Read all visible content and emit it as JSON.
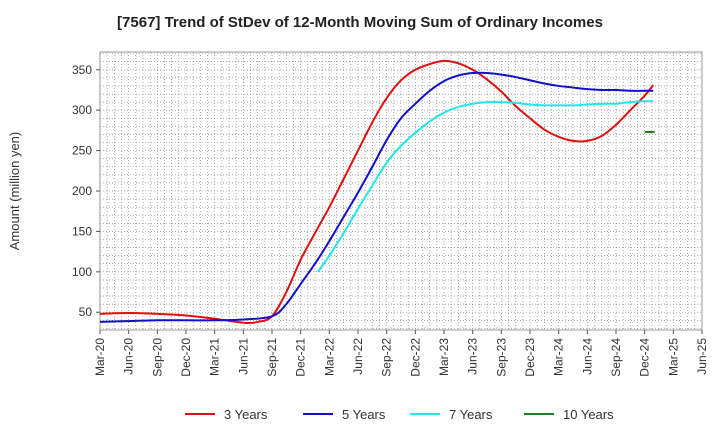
{
  "chart_data": {
    "type": "line",
    "title": "[7567]  Trend of StDev of 12-Month Moving Sum of Ordinary Incomes",
    "xlabel": "",
    "ylabel": "Amount (million yen)",
    "ylim": [
      28,
      372
    ],
    "yticks": [
      50,
      100,
      150,
      200,
      250,
      300,
      350
    ],
    "x_tick_labels": [
      "Mar-20",
      "Jun-20",
      "Sep-20",
      "Dec-20",
      "Mar-21",
      "Jun-21",
      "Sep-21",
      "Dec-21",
      "Mar-22",
      "Jun-22",
      "Sep-22",
      "Dec-22",
      "Mar-23",
      "Jun-23",
      "Sep-23",
      "Dec-23",
      "Mar-24",
      "Jun-24",
      "Sep-24",
      "Dec-24",
      "Mar-25",
      "Jun-25"
    ],
    "grid": true,
    "legend_position": "bottom",
    "series": [
      {
        "name": "3 Years",
        "color": "#e01010",
        "points": [
          [
            0,
            48
          ],
          [
            1,
            49
          ],
          [
            2,
            48
          ],
          [
            3,
            46
          ],
          [
            4,
            42
          ],
          [
            5,
            37
          ],
          [
            5.5,
            38
          ],
          [
            6,
            45
          ],
          [
            6.5,
            75
          ],
          [
            7,
            115
          ],
          [
            7.5,
            148
          ],
          [
            8,
            180
          ],
          [
            8.5,
            215
          ],
          [
            9,
            250
          ],
          [
            9.5,
            285
          ],
          [
            10,
            315
          ],
          [
            10.5,
            337
          ],
          [
            11,
            350
          ],
          [
            11.5,
            357
          ],
          [
            12,
            361
          ],
          [
            12.5,
            358
          ],
          [
            13,
            350
          ],
          [
            13.5,
            338
          ],
          [
            14,
            323
          ],
          [
            14.5,
            305
          ],
          [
            15,
            290
          ],
          [
            15.5,
            276
          ],
          [
            16,
            267
          ],
          [
            16.5,
            262
          ],
          [
            17,
            262
          ],
          [
            17.5,
            268
          ],
          [
            18,
            282
          ],
          [
            18.5,
            300
          ],
          [
            19,
            318
          ],
          [
            19.3,
            331
          ]
        ]
      },
      {
        "name": "5 Years",
        "color": "#1010cc",
        "points": [
          [
            0,
            38
          ],
          [
            1,
            39
          ],
          [
            2,
            40
          ],
          [
            3,
            40
          ],
          [
            4,
            40
          ],
          [
            5,
            41
          ],
          [
            6,
            45
          ],
          [
            6.5,
            60
          ],
          [
            7,
            85
          ],
          [
            7.5,
            110
          ],
          [
            8,
            138
          ],
          [
            8.5,
            168
          ],
          [
            9,
            198
          ],
          [
            9.5,
            230
          ],
          [
            10,
            263
          ],
          [
            10.5,
            290
          ],
          [
            11,
            308
          ],
          [
            11.5,
            324
          ],
          [
            12,
            336
          ],
          [
            12.5,
            343
          ],
          [
            13,
            346
          ],
          [
            13.5,
            346
          ],
          [
            14,
            344
          ],
          [
            14.5,
            341
          ],
          [
            15,
            337
          ],
          [
            15.5,
            333
          ],
          [
            16,
            330
          ],
          [
            16.5,
            328
          ],
          [
            17,
            326
          ],
          [
            17.5,
            325
          ],
          [
            18,
            325
          ],
          [
            18.5,
            324
          ],
          [
            19,
            324
          ],
          [
            19.3,
            324
          ]
        ]
      },
      {
        "name": "7 Years",
        "color": "#20e8e8",
        "points": [
          [
            7.6,
            100
          ],
          [
            8,
            120
          ],
          [
            8.5,
            148
          ],
          [
            9,
            178
          ],
          [
            9.5,
            207
          ],
          [
            10,
            235
          ],
          [
            10.5,
            256
          ],
          [
            11,
            272
          ],
          [
            11.5,
            286
          ],
          [
            12,
            297
          ],
          [
            12.5,
            304
          ],
          [
            13,
            308
          ],
          [
            13.5,
            310
          ],
          [
            14,
            310
          ],
          [
            14.5,
            309
          ],
          [
            15,
            307
          ],
          [
            15.5,
            306
          ],
          [
            16,
            306
          ],
          [
            16.5,
            306
          ],
          [
            17,
            307
          ],
          [
            17.5,
            308
          ],
          [
            18,
            308
          ],
          [
            18.5,
            310
          ],
          [
            19,
            311
          ],
          [
            19.3,
            311
          ]
        ]
      },
      {
        "name": "10 Years",
        "color": "#208020",
        "points": [
          [
            19.0,
            273
          ],
          [
            19.35,
            273
          ]
        ]
      }
    ]
  }
}
